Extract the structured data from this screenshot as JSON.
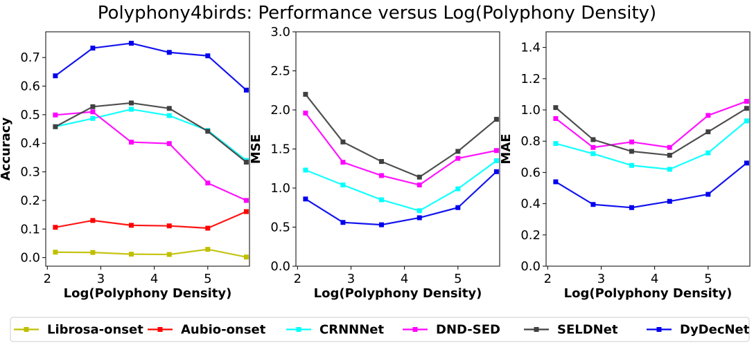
{
  "figure_title": "Polyphony4birds: Performance versus Log(Polyphony Density)",
  "series_styles": [
    {
      "name": "Librosa-onset",
      "color": "#bfbf00"
    },
    {
      "name": "Aubio-onset",
      "color": "#ff0000"
    },
    {
      "name": "CRNNNet",
      "color": "#00ffff"
    },
    {
      "name": "DND-SED",
      "color": "#ff00ff"
    },
    {
      "name": "SELDNet",
      "color": "#404040"
    },
    {
      "name": "DyDecNet",
      "color": "#0000ee"
    }
  ],
  "chart_data": [
    {
      "type": "line",
      "xlabel": "Log(Polyphony Density)",
      "ylabel": "Accuracy",
      "xlim": [
        1.97,
        5.78
      ],
      "ylim": [
        -0.03,
        0.79
      ],
      "xticks": [
        "2",
        "3",
        "4",
        "5"
      ],
      "yticks": [
        "0.0",
        "0.1",
        "0.2",
        "0.3",
        "0.4",
        "0.5",
        "0.6",
        "0.7"
      ],
      "x": [
        2.15,
        2.85,
        3.57,
        4.28,
        5.0,
        5.72
      ],
      "series": [
        {
          "name": "Librosa-onset",
          "values": [
            0.019,
            0.018,
            0.012,
            0.011,
            0.029,
            0.002
          ]
        },
        {
          "name": "Aubio-onset",
          "values": [
            0.106,
            0.13,
            0.113,
            0.111,
            0.103,
            0.161
          ]
        },
        {
          "name": "CRNNNet",
          "values": [
            0.458,
            0.487,
            0.519,
            0.497,
            0.445,
            0.34
          ]
        },
        {
          "name": "DND-SED",
          "values": [
            0.499,
            0.51,
            0.404,
            0.399,
            0.261,
            0.2
          ]
        },
        {
          "name": "SELDNet",
          "values": [
            0.458,
            0.528,
            0.541,
            0.522,
            0.442,
            0.334
          ]
        },
        {
          "name": "DyDecNet",
          "values": [
            0.636,
            0.733,
            0.75,
            0.718,
            0.706,
            0.586
          ]
        }
      ]
    },
    {
      "type": "line",
      "xlabel": "Log(Polyphony Density)",
      "ylabel": "MSE",
      "xlim": [
        1.97,
        5.78
      ],
      "ylim": [
        0.0,
        3.0
      ],
      "xticks": [
        "2",
        "3",
        "4",
        "5"
      ],
      "yticks": [
        "0.0",
        "0.5",
        "1.0",
        "1.5",
        "2.0",
        "2.5",
        "3.0"
      ],
      "x": [
        2.15,
        2.85,
        3.57,
        4.28,
        5.0,
        5.72
      ],
      "series": [
        {
          "name": "CRNNNet",
          "values": [
            1.23,
            1.04,
            0.85,
            0.71,
            0.99,
            1.35
          ]
        },
        {
          "name": "DND-SED",
          "values": [
            1.96,
            1.33,
            1.16,
            1.04,
            1.38,
            1.48
          ]
        },
        {
          "name": "SELDNet",
          "values": [
            2.2,
            1.59,
            1.34,
            1.14,
            1.47,
            1.88
          ]
        },
        {
          "name": "DyDecNet",
          "values": [
            0.86,
            0.56,
            0.53,
            0.62,
            0.75,
            1.21
          ]
        }
      ]
    },
    {
      "type": "line",
      "xlabel": "Log(Polyphony Density)",
      "ylabel": "MAE",
      "xlim": [
        1.97,
        5.78
      ],
      "ylim": [
        0.0,
        1.5
      ],
      "xticks": [
        "2",
        "3",
        "4",
        "5"
      ],
      "yticks": [
        "0.0",
        "0.2",
        "0.4",
        "0.6",
        "0.8",
        "1.0",
        "1.2",
        "1.4"
      ],
      "x": [
        2.15,
        2.85,
        3.57,
        4.28,
        5.0,
        5.72
      ],
      "series": [
        {
          "name": "CRNNNet",
          "values": [
            0.785,
            0.72,
            0.645,
            0.62,
            0.725,
            0.93
          ]
        },
        {
          "name": "DND-SED",
          "values": [
            0.945,
            0.76,
            0.795,
            0.76,
            0.965,
            1.055
          ]
        },
        {
          "name": "SELDNet",
          "values": [
            1.015,
            0.81,
            0.735,
            0.71,
            0.86,
            1.01
          ]
        },
        {
          "name": "DyDecNet",
          "values": [
            0.54,
            0.395,
            0.375,
            0.415,
            0.46,
            0.66
          ]
        }
      ]
    }
  ],
  "legend": {
    "placement": "bottom",
    "entries": [
      "Librosa-onset",
      "Aubio-onset",
      "CRNNNet",
      "DND-SED",
      "SELDNet",
      "DyDecNet"
    ]
  }
}
